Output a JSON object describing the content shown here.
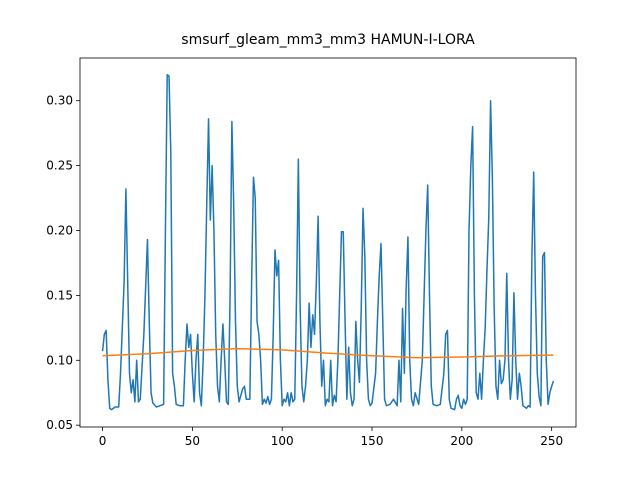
{
  "chart_data": {
    "type": "line",
    "title": "smsurf_gleam_mm3_mm3 HAMUN-I-LORA",
    "xlim": [
      -12.55,
      263.55
    ],
    "xticks": [
      0,
      50,
      100,
      150,
      200,
      250
    ],
    "ylim": [
      0.0486,
      0.3329
    ],
    "yticks": [
      0.05,
      {
        "value": 0.1,
        "label": "0.10"
      },
      0.15,
      {
        "value": 0.2,
        "label": "0.20"
      },
      0.25,
      {
        "value": 0.3,
        "label": "0.30"
      }
    ],
    "series": [
      {
        "color": "#1f77b4",
        "x": [
          0,
          1,
          2,
          3,
          4,
          5,
          7,
          9,
          10,
          12,
          13,
          14,
          15,
          16,
          17,
          18,
          19,
          20,
          21,
          23,
          25,
          26,
          27,
          28,
          30,
          32,
          34,
          35,
          36,
          37,
          38,
          39,
          40,
          41,
          43,
          45,
          46,
          47,
          48,
          49,
          50,
          51,
          52,
          53,
          54,
          55,
          56,
          57,
          58,
          59,
          60,
          61,
          62,
          63,
          64,
          65,
          66,
          67,
          68,
          69,
          70,
          71,
          72,
          73,
          74,
          75,
          76,
          77,
          78,
          79,
          80,
          82,
          83,
          84,
          85,
          86,
          87,
          88,
          89,
          90,
          91,
          92,
          93,
          94,
          95,
          96,
          97,
          98,
          99,
          100,
          101,
          102,
          103,
          104,
          105,
          106,
          107,
          108,
          109,
          110,
          111,
          112,
          113,
          114,
          115,
          116,
          117,
          118,
          119,
          120,
          121,
          122,
          123,
          124,
          125,
          126,
          127,
          128,
          129,
          130,
          131,
          132,
          133,
          134,
          135,
          136,
          137,
          138,
          139,
          140,
          141,
          142,
          143,
          144,
          145,
          146,
          147,
          148,
          149,
          150,
          152,
          153,
          154,
          155,
          156,
          157,
          158,
          160,
          162,
          164,
          165,
          166,
          167,
          168,
          169,
          170,
          171,
          172,
          173,
          174,
          176,
          178,
          179,
          180,
          181,
          182,
          183,
          184,
          186,
          188,
          190,
          191,
          192,
          193,
          194,
          196,
          197,
          198,
          199,
          200,
          201,
          202,
          203,
          204,
          205,
          206,
          207,
          208,
          209,
          210,
          211,
          212,
          213,
          214,
          215,
          216,
          217,
          218,
          219,
          220,
          221,
          222,
          223,
          224,
          225,
          226,
          227,
          228,
          229,
          230,
          231,
          232,
          233,
          234,
          236,
          237,
          238,
          239,
          240,
          241,
          242,
          243,
          244,
          245,
          246,
          247,
          248,
          249,
          250,
          251
        ],
        "values": [
          0.107,
          0.12,
          0.123,
          0.085,
          0.063,
          0.062,
          0.064,
          0.064,
          0.09,
          0.16,
          0.232,
          0.16,
          0.09,
          0.075,
          0.085,
          0.068,
          0.1,
          0.068,
          0.07,
          0.12,
          0.193,
          0.13,
          0.075,
          0.067,
          0.064,
          0.065,
          0.066,
          0.2,
          0.32,
          0.319,
          0.26,
          0.09,
          0.08,
          0.066,
          0.065,
          0.065,
          0.1,
          0.128,
          0.11,
          0.12,
          0.09,
          0.068,
          0.1,
          0.12,
          0.075,
          0.065,
          0.1,
          0.15,
          0.22,
          0.286,
          0.208,
          0.25,
          0.2,
          0.12,
          0.08,
          0.068,
          0.1,
          0.128,
          0.1,
          0.068,
          0.066,
          0.15,
          0.284,
          0.22,
          0.13,
          0.08,
          0.068,
          0.073,
          0.078,
          0.08,
          0.07,
          0.07,
          0.16,
          0.241,
          0.225,
          0.13,
          0.12,
          0.1,
          0.066,
          0.07,
          0.067,
          0.072,
          0.066,
          0.07,
          0.12,
          0.185,
          0.165,
          0.177,
          0.1,
          0.065,
          0.07,
          0.068,
          0.075,
          0.065,
          0.075,
          0.068,
          0.07,
          0.15,
          0.255,
          0.14,
          0.08,
          0.068,
          0.08,
          0.1,
          0.144,
          0.11,
          0.135,
          0.12,
          0.16,
          0.211,
          0.13,
          0.08,
          0.1,
          0.065,
          0.07,
          0.068,
          0.1,
          0.065,
          0.073,
          0.068,
          0.1,
          0.15,
          0.199,
          0.199,
          0.13,
          0.07,
          0.11,
          0.075,
          0.065,
          0.07,
          0.13,
          0.1,
          0.083,
          0.14,
          0.217,
          0.18,
          0.1,
          0.07,
          0.065,
          0.067,
          0.09,
          0.13,
          0.165,
          0.19,
          0.13,
          0.07,
          0.065,
          0.066,
          0.07,
          0.065,
          0.1,
          0.068,
          0.14,
          0.09,
          0.155,
          0.195,
          0.1,
          0.07,
          0.065,
          0.075,
          0.066,
          0.1,
          0.15,
          0.2,
          0.235,
          0.15,
          0.08,
          0.066,
          0.065,
          0.066,
          0.09,
          0.12,
          0.123,
          0.07,
          0.063,
          0.062,
          0.07,
          0.073,
          0.065,
          0.063,
          0.07,
          0.066,
          0.07,
          0.2,
          0.25,
          0.28,
          0.15,
          0.075,
          0.07,
          0.09,
          0.07,
          0.1,
          0.125,
          0.17,
          0.21,
          0.3,
          0.24,
          0.14,
          0.08,
          0.07,
          0.1,
          0.082,
          0.085,
          0.1,
          0.167,
          0.1,
          0.07,
          0.085,
          0.152,
          0.1,
          0.07,
          0.09,
          0.08,
          0.065,
          0.063,
          0.065,
          0.064,
          0.18,
          0.245,
          0.15,
          0.09,
          0.072,
          0.065,
          0.18,
          0.183,
          0.1,
          0.066,
          0.075,
          0.08,
          0.084
        ]
      },
      {
        "color": "#ff7f0e",
        "x": [
          0,
          25,
          50,
          75,
          100,
          125,
          150,
          175,
          200,
          225,
          251
        ],
        "values": [
          0.1035,
          0.105,
          0.1075,
          0.109,
          0.108,
          0.1055,
          0.1035,
          0.102,
          0.1025,
          0.1035,
          0.104
        ]
      }
    ]
  }
}
